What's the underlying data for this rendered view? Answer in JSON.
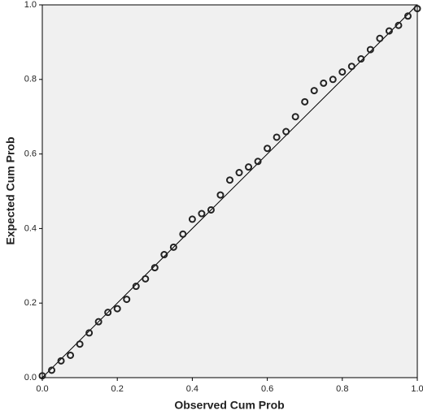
{
  "chart_data": {
    "type": "scatter",
    "xlabel": "Observed Cum Prob",
    "ylabel": "Expected Cum Prob",
    "x": [
      0,
      0.025,
      0.05,
      0.075,
      0.1,
      0.125,
      0.15,
      0.175,
      0.2,
      0.225,
      0.25,
      0.275,
      0.3,
      0.325,
      0.35,
      0.375,
      0.4,
      0.425,
      0.45,
      0.475,
      0.5,
      0.525,
      0.55,
      0.575,
      0.6,
      0.625,
      0.65,
      0.675,
      0.7,
      0.725,
      0.75,
      0.775,
      0.8,
      0.825,
      0.85,
      0.875,
      0.9,
      0.925,
      0.95,
      0.975,
      1
    ],
    "values": [
      0.005,
      0.02,
      0.045,
      0.06,
      0.09,
      0.12,
      0.15,
      0.175,
      0.185,
      0.21,
      0.245,
      0.265,
      0.295,
      0.33,
      0.35,
      0.385,
      0.425,
      0.44,
      0.45,
      0.49,
      0.53,
      0.55,
      0.565,
      0.58,
      0.615,
      0.645,
      0.66,
      0.7,
      0.74,
      0.77,
      0.79,
      0.8,
      0.82,
      0.835,
      0.855,
      0.88,
      0.91,
      0.93,
      0.945,
      0.97,
      0.99
    ],
    "color": "#222222",
    "reference_line": {
      "x": [
        0,
        1
      ],
      "y": [
        0,
        1
      ]
    },
    "xlim": [
      0,
      1
    ],
    "ylim": [
      0,
      1
    ],
    "xticks": [
      {
        "value": 0,
        "label": "0.0"
      },
      0.2,
      0.4,
      0.6,
      0.8,
      {
        "value": 1,
        "label": "1.0"
      }
    ],
    "yticks": [
      {
        "value": 0,
        "label": "0.0"
      },
      0.2,
      0.4,
      0.6,
      0.8,
      {
        "value": 1,
        "label": "1.0"
      }
    ]
  }
}
